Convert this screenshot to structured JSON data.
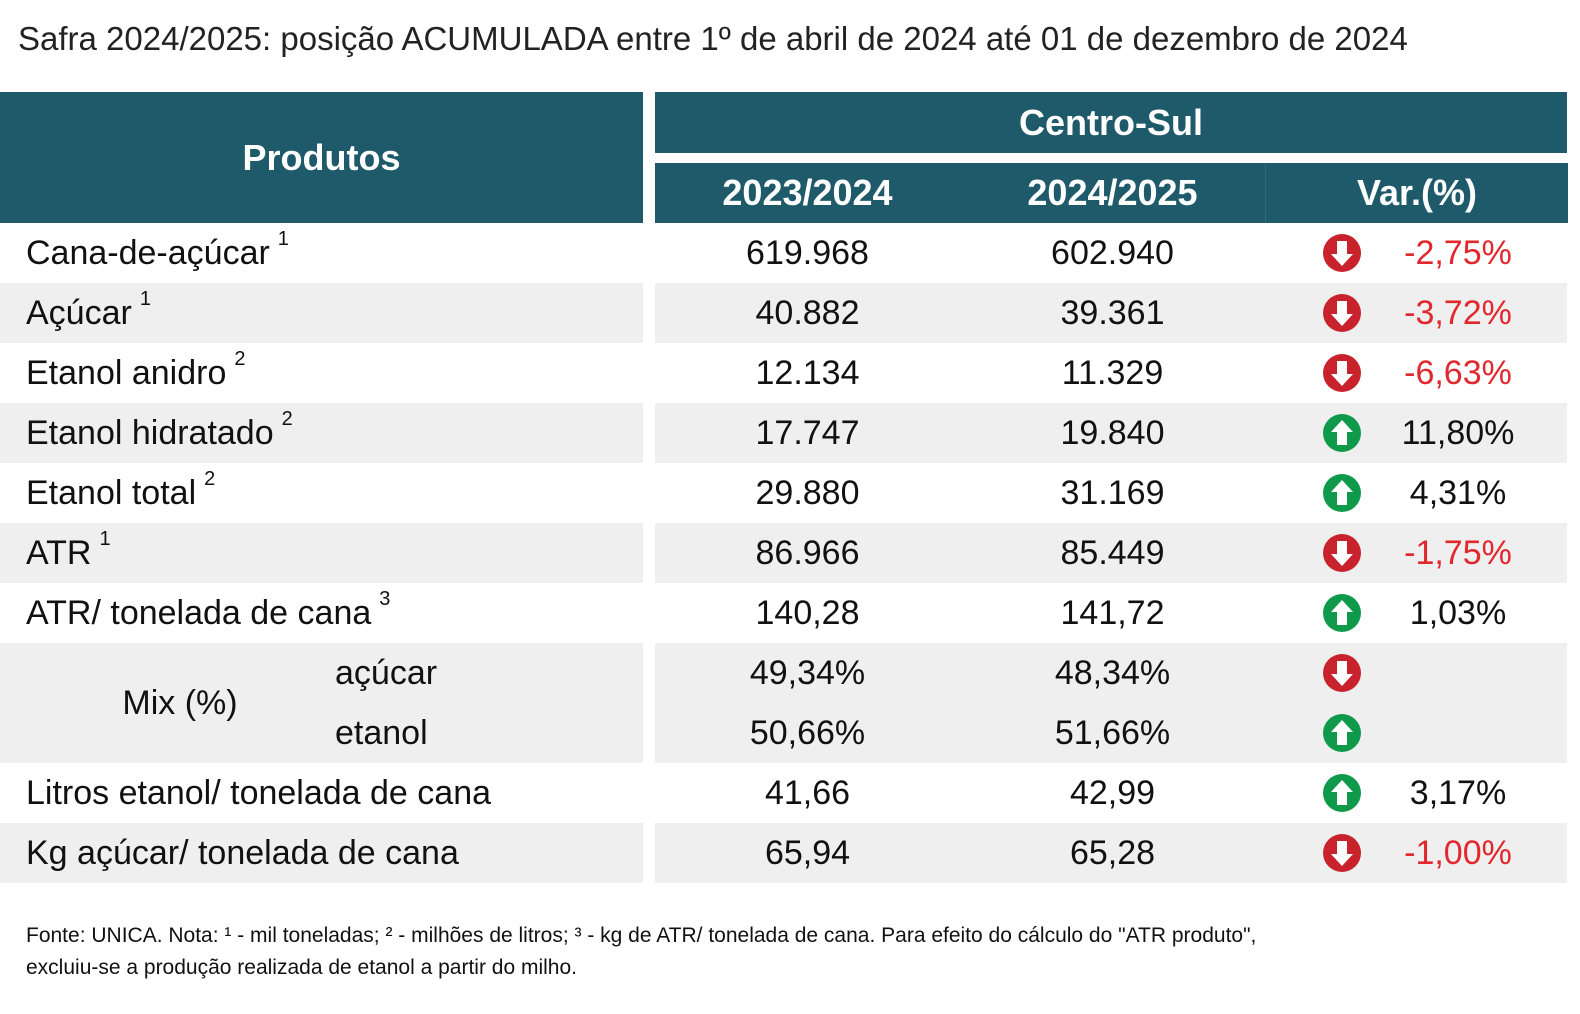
{
  "title": "Safra 2024/2025: posição ACUMULADA entre 1º de abril de 2024 até 01 de dezembro de 2024",
  "table": {
    "header": {
      "products": "Produtos",
      "region": "Centro-Sul",
      "columns": [
        "2023/2024",
        "2024/2025",
        "Var.(%)"
      ]
    },
    "rows": [
      {
        "label": "Cana-de-açúcar",
        "note": "1",
        "values": [
          "619.968",
          "602.940"
        ],
        "var": "-2,75%",
        "trend": "down"
      },
      {
        "label": "Açúcar",
        "note": "1",
        "values": [
          "40.882",
          "39.361"
        ],
        "var": "-3,72%",
        "trend": "down"
      },
      {
        "label": "Etanol anidro",
        "note": "2",
        "values": [
          "12.134",
          "11.329"
        ],
        "var": "-6,63%",
        "trend": "down"
      },
      {
        "label": "Etanol hidratado",
        "note": "2",
        "values": [
          "17.747",
          "19.840"
        ],
        "var": "11,80%",
        "trend": "up"
      },
      {
        "label": "Etanol total",
        "note": "2",
        "values": [
          "29.880",
          "31.169"
        ],
        "var": "4,31%",
        "trend": "up"
      },
      {
        "label": "ATR",
        "note": "1",
        "values": [
          "86.966",
          "85.449"
        ],
        "var": "-1,75%",
        "trend": "down"
      },
      {
        "label": "ATR/ tonelada de cana",
        "note": "3",
        "values": [
          "140,28",
          "141,72"
        ],
        "var": "1,03%",
        "trend": "up"
      },
      {
        "label": "Mix (%)",
        "items": [
          {
            "label": "açúcar",
            "values": [
              "49,34%",
              "48,34%"
            ],
            "trend": "down"
          },
          {
            "label": "etanol",
            "values": [
              "50,66%",
              "51,66%"
            ],
            "trend": "up"
          }
        ]
      },
      {
        "label": "Litros etanol/ tonelada de cana",
        "values": [
          "41,66",
          "42,99"
        ],
        "var": "3,17%",
        "trend": "up"
      },
      {
        "label": "Kg açúcar/ tonelada de cana",
        "values": [
          "65,94",
          "65,28"
        ],
        "var": "-1,00%",
        "trend": "down"
      }
    ]
  },
  "footnote": [
    "Fonte: UNICA. Nota: ¹ - mil toneladas; ² - milhões de litros; ³ - kg de ATR/ tonelada de cana. Para efeito do cálculo do \"ATR produto\",",
    "excluiu-se a produção realizada de etanol a partir do milho."
  ]
}
